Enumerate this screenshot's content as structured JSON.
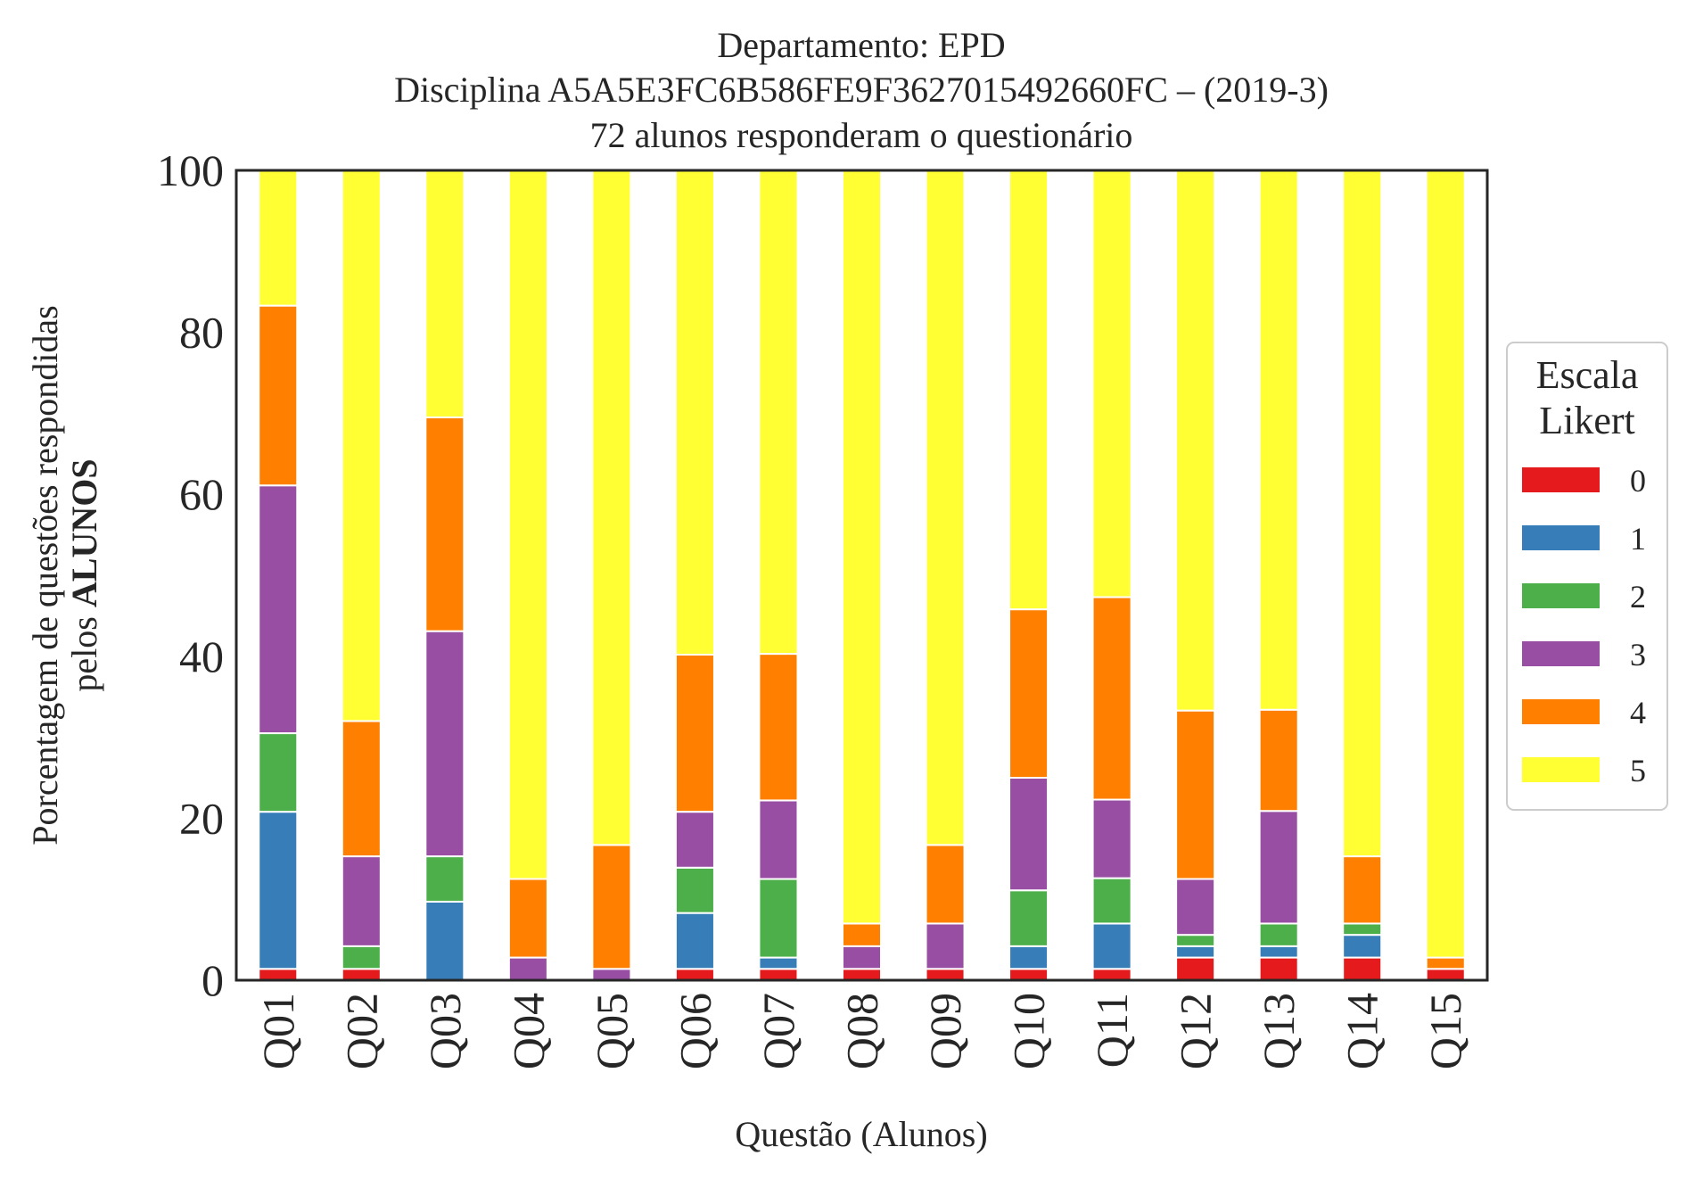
{
  "chart_data": {
    "type": "bar",
    "stacked": true,
    "title_lines": [
      "Departamento: EPD",
      "Disciplina A5A5E3FC6B586FE9F3627015492660FC – (2019-3)",
      "72 alunos responderam o questionário"
    ],
    "xlabel": "Questão (Alunos)",
    "ylabel_line1": "Porcentagem de questões respondidas",
    "ylabel_line2_prefix": "pelos ",
    "ylabel_line2_bold": "ALUNOS",
    "ylim": [
      0,
      100
    ],
    "yticks": [
      "0",
      "20",
      "40",
      "60",
      "80",
      "100"
    ],
    "categories": [
      "Q01",
      "Q02",
      "Q03",
      "Q04",
      "Q05",
      "Q06",
      "Q07",
      "Q08",
      "Q09",
      "Q10",
      "Q11",
      "Q12",
      "Q13",
      "Q14",
      "Q15"
    ],
    "legend": {
      "title_line1": "Escala",
      "title_line2": "Likert",
      "position": "center-right"
    },
    "grid": false,
    "series": [
      {
        "name": "0",
        "color": "#e41a1c",
        "values": [
          1.4,
          1.4,
          0.0,
          0.0,
          0.0,
          1.4,
          1.4,
          1.4,
          1.4,
          1.4,
          1.4,
          2.8,
          2.8,
          2.8,
          1.4
        ]
      },
      {
        "name": "1",
        "color": "#377eb8",
        "values": [
          19.4,
          0.0,
          9.7,
          0.0,
          0.0,
          6.9,
          1.4,
          0.0,
          0.0,
          2.8,
          5.6,
          1.4,
          1.4,
          2.8,
          0.0
        ]
      },
      {
        "name": "2",
        "color": "#4daf4a",
        "values": [
          9.7,
          2.8,
          5.6,
          0.0,
          0.0,
          5.6,
          9.7,
          0.0,
          0.0,
          6.9,
          5.6,
          1.4,
          2.8,
          1.4,
          0.0
        ]
      },
      {
        "name": "3",
        "color": "#984ea3",
        "values": [
          30.6,
          11.1,
          27.8,
          2.8,
          1.4,
          6.9,
          9.7,
          2.8,
          5.6,
          13.9,
          9.7,
          6.9,
          13.9,
          0.0,
          0.0
        ]
      },
      {
        "name": "4",
        "color": "#ff7f00",
        "values": [
          22.2,
          16.7,
          26.4,
          9.7,
          15.3,
          19.4,
          18.1,
          2.8,
          9.7,
          20.8,
          25.0,
          20.8,
          12.5,
          8.3,
          1.4
        ]
      },
      {
        "name": "5",
        "color": "#ffff33",
        "values": [
          16.7,
          68.0,
          30.5,
          87.5,
          83.3,
          59.8,
          59.7,
          93.0,
          83.3,
          54.2,
          52.7,
          66.7,
          66.6,
          84.7,
          97.2
        ]
      }
    ]
  }
}
